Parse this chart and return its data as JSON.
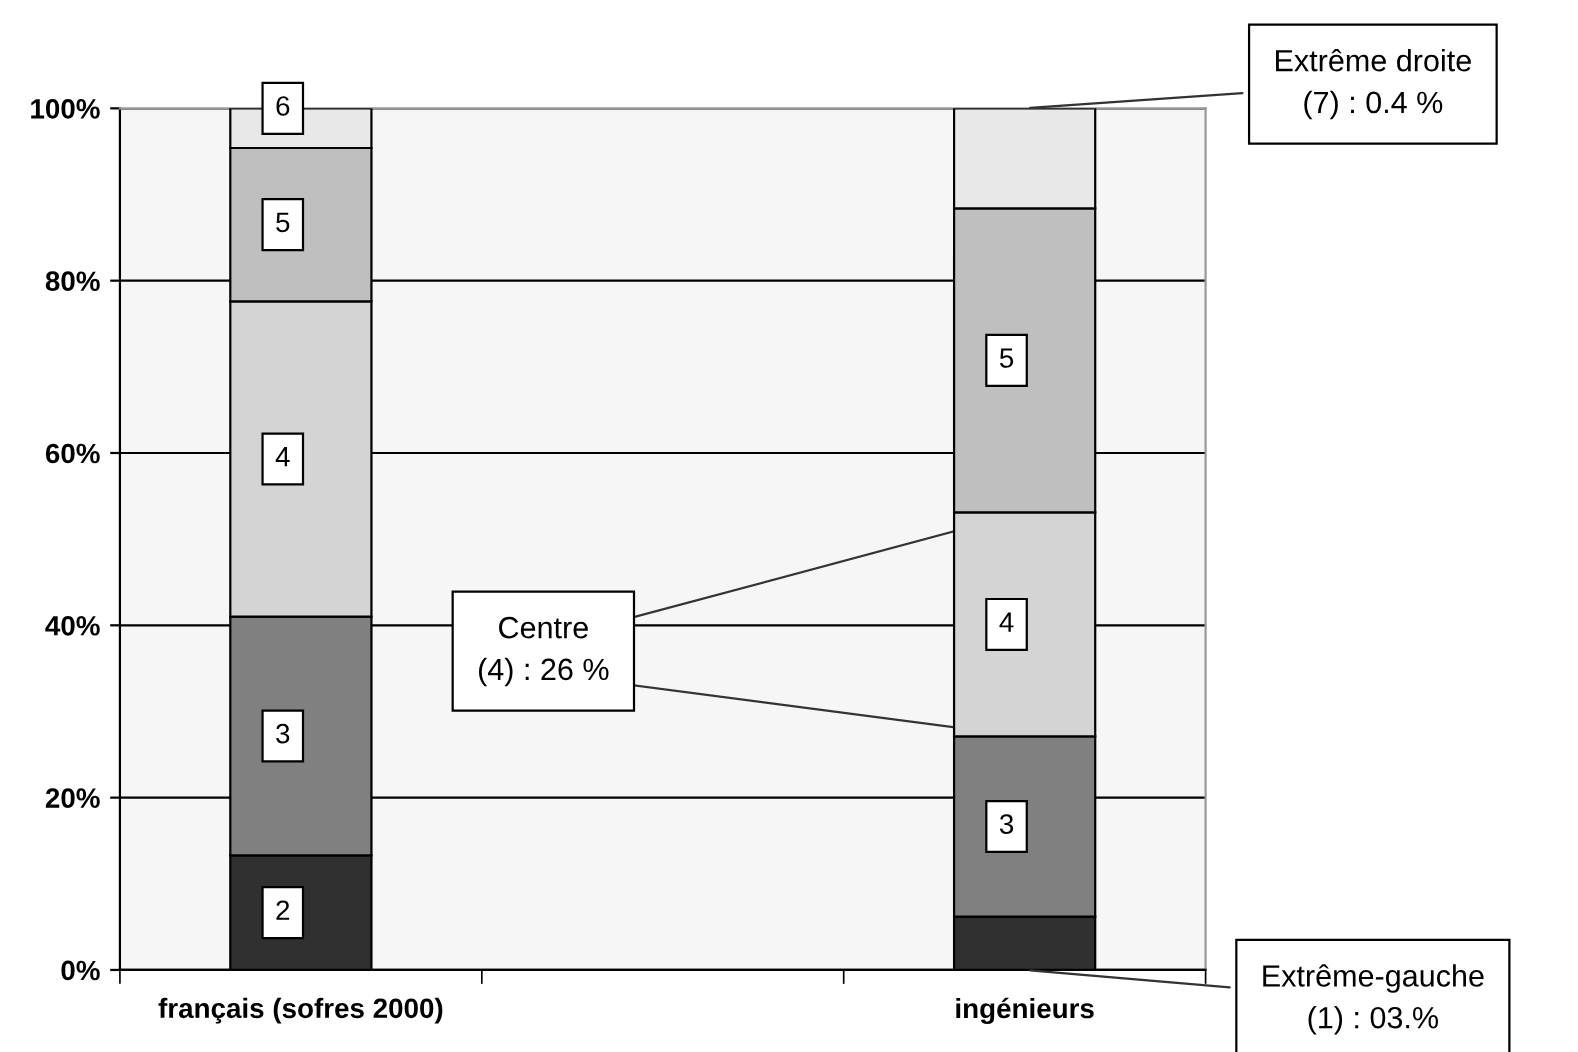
{
  "chart_data": {
    "type": "bar",
    "stacked": true,
    "categories": [
      "français (sofres 2000)",
      null,
      "ingénieurs"
    ],
    "series": [
      {
        "color": "#303030",
        "values": [
          13.3,
          null,
          6.2
        ]
      },
      {
        "color": "#808080",
        "values": [
          27.7,
          null,
          20.9
        ]
      },
      {
        "color": "#d4d4d4",
        "values": [
          36.6,
          null,
          26.0
        ]
      },
      {
        "color": "#bfbfbf",
        "values": [
          17.8,
          null,
          35.3
        ]
      },
      {
        "color": "#e8e8e8",
        "values": [
          4.6,
          null,
          11.6
        ]
      }
    ],
    "ylim": [
      0,
      100
    ],
    "yticks": [
      {
        "value": 0,
        "label": "0%"
      },
      {
        "value": 20,
        "label": "20%"
      },
      {
        "value": 40,
        "label": "40%"
      },
      {
        "value": 60,
        "label": "60%"
      },
      {
        "value": 80,
        "label": "80%"
      },
      {
        "value": 100,
        "label": "100%"
      }
    ],
    "grid": "y",
    "annotations": [
      "6",
      "5",
      "4",
      "3",
      "2",
      "5",
      "4",
      "3",
      {
        "text": "Centre\n(4) : 26 %",
        "x": "ingénieurs",
        "y": 53.1
      },
      {
        "text": "Extrême droite\n(7) : 0.4 %",
        "x": "ingénieurs",
        "y": 100
      },
      {
        "text": "Extrême-gauche\n(1) : 03.%",
        "x": "ingénieurs",
        "y": 0
      }
    ]
  }
}
